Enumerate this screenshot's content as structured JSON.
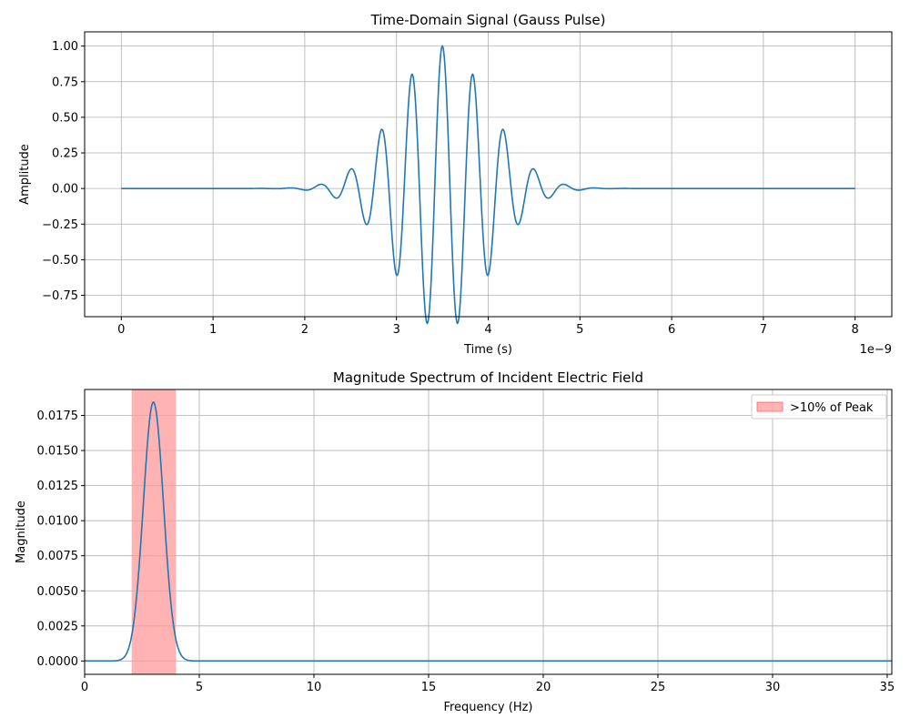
{
  "chart_data": [
    {
      "type": "line",
      "title": "Time-Domain Signal (Gauss Pulse)",
      "xlabel": "Time (s)",
      "ylabel": "Amplitude",
      "x_offset_label": "1e−9",
      "xlim": [
        -0.4,
        8.4
      ],
      "ylim": [
        -0.9,
        1.1
      ],
      "xticks": [
        0,
        1,
        2,
        3,
        4,
        5,
        6,
        7,
        8
      ],
      "xtick_labels": [
        "0",
        "1",
        "2",
        "3",
        "4",
        "5",
        "6",
        "7",
        "8"
      ],
      "yticks": [
        -0.75,
        -0.5,
        -0.25,
        0.0,
        0.25,
        0.5,
        0.75,
        1.0
      ],
      "ytick_labels": [
        "−0.75",
        "−0.50",
        "−0.25",
        "0.00",
        "0.25",
        "0.50",
        "0.75",
        "1.00"
      ],
      "grid": true,
      "series": [
        {
          "color": "#1f77b4",
          "model": "gauss_pulse",
          "x_range": [
            0,
            8
          ],
          "center": 3.5,
          "carrier_freq": 3.0,
          "envelope_sigma": 0.5
        }
      ]
    },
    {
      "type": "line",
      "title": "Magnitude Spectrum of Incident Electric Field",
      "xlabel": "Frequency (Hz)",
      "ylabel": "Magnitude",
      "xlim": [
        0,
        35.2
      ],
      "ylim": [
        -0.00095,
        0.01935
      ],
      "xticks": [
        0,
        5,
        10,
        15,
        20,
        25,
        30,
        35
      ],
      "xtick_labels": [
        "0",
        "5",
        "10",
        "15",
        "20",
        "25",
        "30",
        "35"
      ],
      "yticks": [
        0.0,
        0.0025,
        0.005,
        0.0075,
        0.01,
        0.0125,
        0.015,
        0.0175
      ],
      "ytick_labels": [
        "0.0000",
        "0.0025",
        "0.0050",
        "0.0075",
        "0.0100",
        "0.0125",
        "0.0150",
        "0.0175"
      ],
      "grid": true,
      "legend_position": "top-right",
      "highlight_band": {
        "x_range": [
          2.05,
          3.98
        ],
        "color": "#ff9999",
        "label": ">10% of Peak"
      },
      "series": [
        {
          "color": "#1f77b4",
          "model": "gaussian",
          "x_range": [
            0,
            35.2
          ],
          "peak_x": 3.0,
          "peak_y": 0.01845,
          "sigma": 0.44
        }
      ]
    }
  ]
}
